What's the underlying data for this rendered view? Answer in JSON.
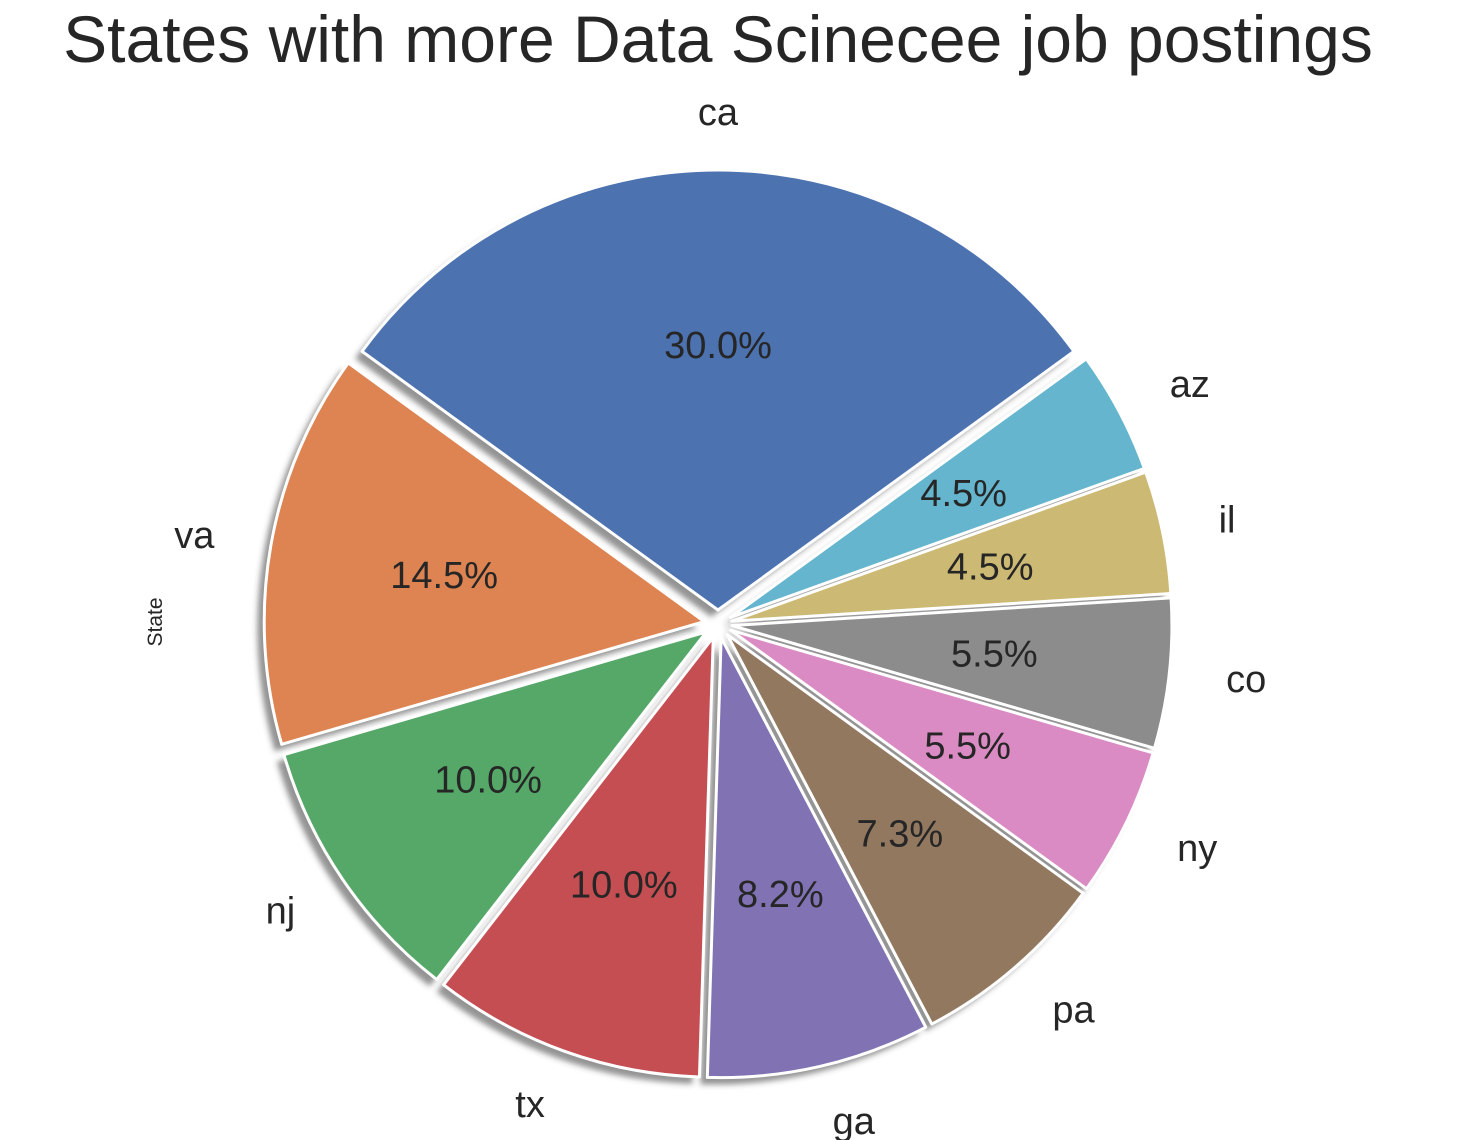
{
  "chart_data": {
    "type": "pie",
    "title": "States with more Data Scinecee job postings",
    "ylabel": "State",
    "shadow": true,
    "exploded": true,
    "categories": [
      "ca",
      "va",
      "nj",
      "tx",
      "ga",
      "pa",
      "ny",
      "co",
      "il",
      "az"
    ],
    "values": [
      30.0,
      14.5,
      10.0,
      10.0,
      8.2,
      7.3,
      5.5,
      5.5,
      4.5,
      4.5
    ],
    "value_labels": [
      "30.0%",
      "14.5%",
      "10.0%",
      "10.0%",
      "8.2%",
      "7.3%",
      "5.5%",
      "5.5%",
      "4.5%",
      "4.5%"
    ],
    "colors": [
      "#4c72b0",
      "#dd8452",
      "#55a868",
      "#c44e52",
      "#8172b3",
      "#937860",
      "#da8bc3",
      "#8c8c8c",
      "#ccb974",
      "#64b5cd"
    ],
    "start_angle_deg": 36,
    "direction": "counterclockwise"
  }
}
